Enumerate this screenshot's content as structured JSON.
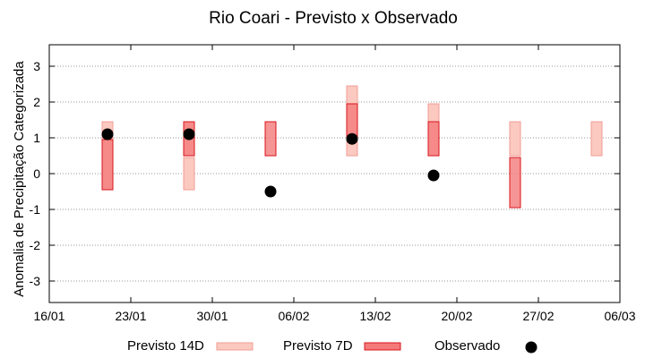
{
  "chart_data": {
    "type": "range-bar",
    "title": "Rio Coari - Previsto x Observado",
    "ylabel": "Anomalia de Precipitação Categorizada",
    "xlabel": "",
    "ylim": [
      -3.6,
      3.6
    ],
    "yticks": [
      3,
      2,
      1,
      0,
      -1,
      -2,
      -3
    ],
    "xlim": [
      0,
      49
    ],
    "xticks": [
      {
        "label": "16/01",
        "pos": 0
      },
      {
        "label": "23/01",
        "pos": 7
      },
      {
        "label": "30/01",
        "pos": 14
      },
      {
        "label": "06/02",
        "pos": 21
      },
      {
        "label": "13/02",
        "pos": 28
      },
      {
        "label": "20/02",
        "pos": 35
      },
      {
        "label": "27/02",
        "pos": 42
      },
      {
        "label": "06/03",
        "pos": 49
      }
    ],
    "grid": true,
    "colors": {
      "p14_fill": "#fbc9c0",
      "p14_stroke": "#f09d95",
      "p7_fill": "#f47a7a",
      "p7_stroke": "#d8141b",
      "observed": "#000000",
      "grid": "#999999"
    },
    "series": [
      {
        "name": "Previsto 14D",
        "kind": "range",
        "points": [
          {
            "x": 5,
            "low": -0.45,
            "high": 1.45
          },
          {
            "x": 12,
            "low": -0.45,
            "high": 0.45
          },
          {
            "x": 12,
            "low": 0.5,
            "high": 1.45
          },
          {
            "x": 26,
            "low": 0.5,
            "high": 2.45
          },
          {
            "x": 33,
            "low": 0.5,
            "high": 1.95
          },
          {
            "x": 40,
            "low": 0.5,
            "high": 1.45
          },
          {
            "x": 47,
            "low": 0.5,
            "high": 1.45
          }
        ]
      },
      {
        "name": "Previsto 7D",
        "kind": "range",
        "points": [
          {
            "x": 5,
            "low": -0.45,
            "high": 0.95
          },
          {
            "x": 12,
            "low": 0.5,
            "high": 1.45
          },
          {
            "x": 19,
            "low": 0.5,
            "high": 1.45
          },
          {
            "x": 26,
            "low": 1.0,
            "high": 1.95
          },
          {
            "x": 33,
            "low": 0.5,
            "high": 1.45
          },
          {
            "x": 40,
            "low": -0.95,
            "high": 0.45
          }
        ]
      },
      {
        "name": "Observado",
        "kind": "point",
        "points": [
          {
            "x": 5,
            "y": 1.1
          },
          {
            "x": 12,
            "y": 1.1
          },
          {
            "x": 19,
            "y": -0.5
          },
          {
            "x": 26,
            "y": 0.97
          },
          {
            "x": 33,
            "y": -0.05
          }
        ]
      }
    ],
    "legend": {
      "placement": "bottom",
      "entries": [
        "Previsto 14D",
        "Previsto 7D",
        "Observado"
      ]
    }
  }
}
